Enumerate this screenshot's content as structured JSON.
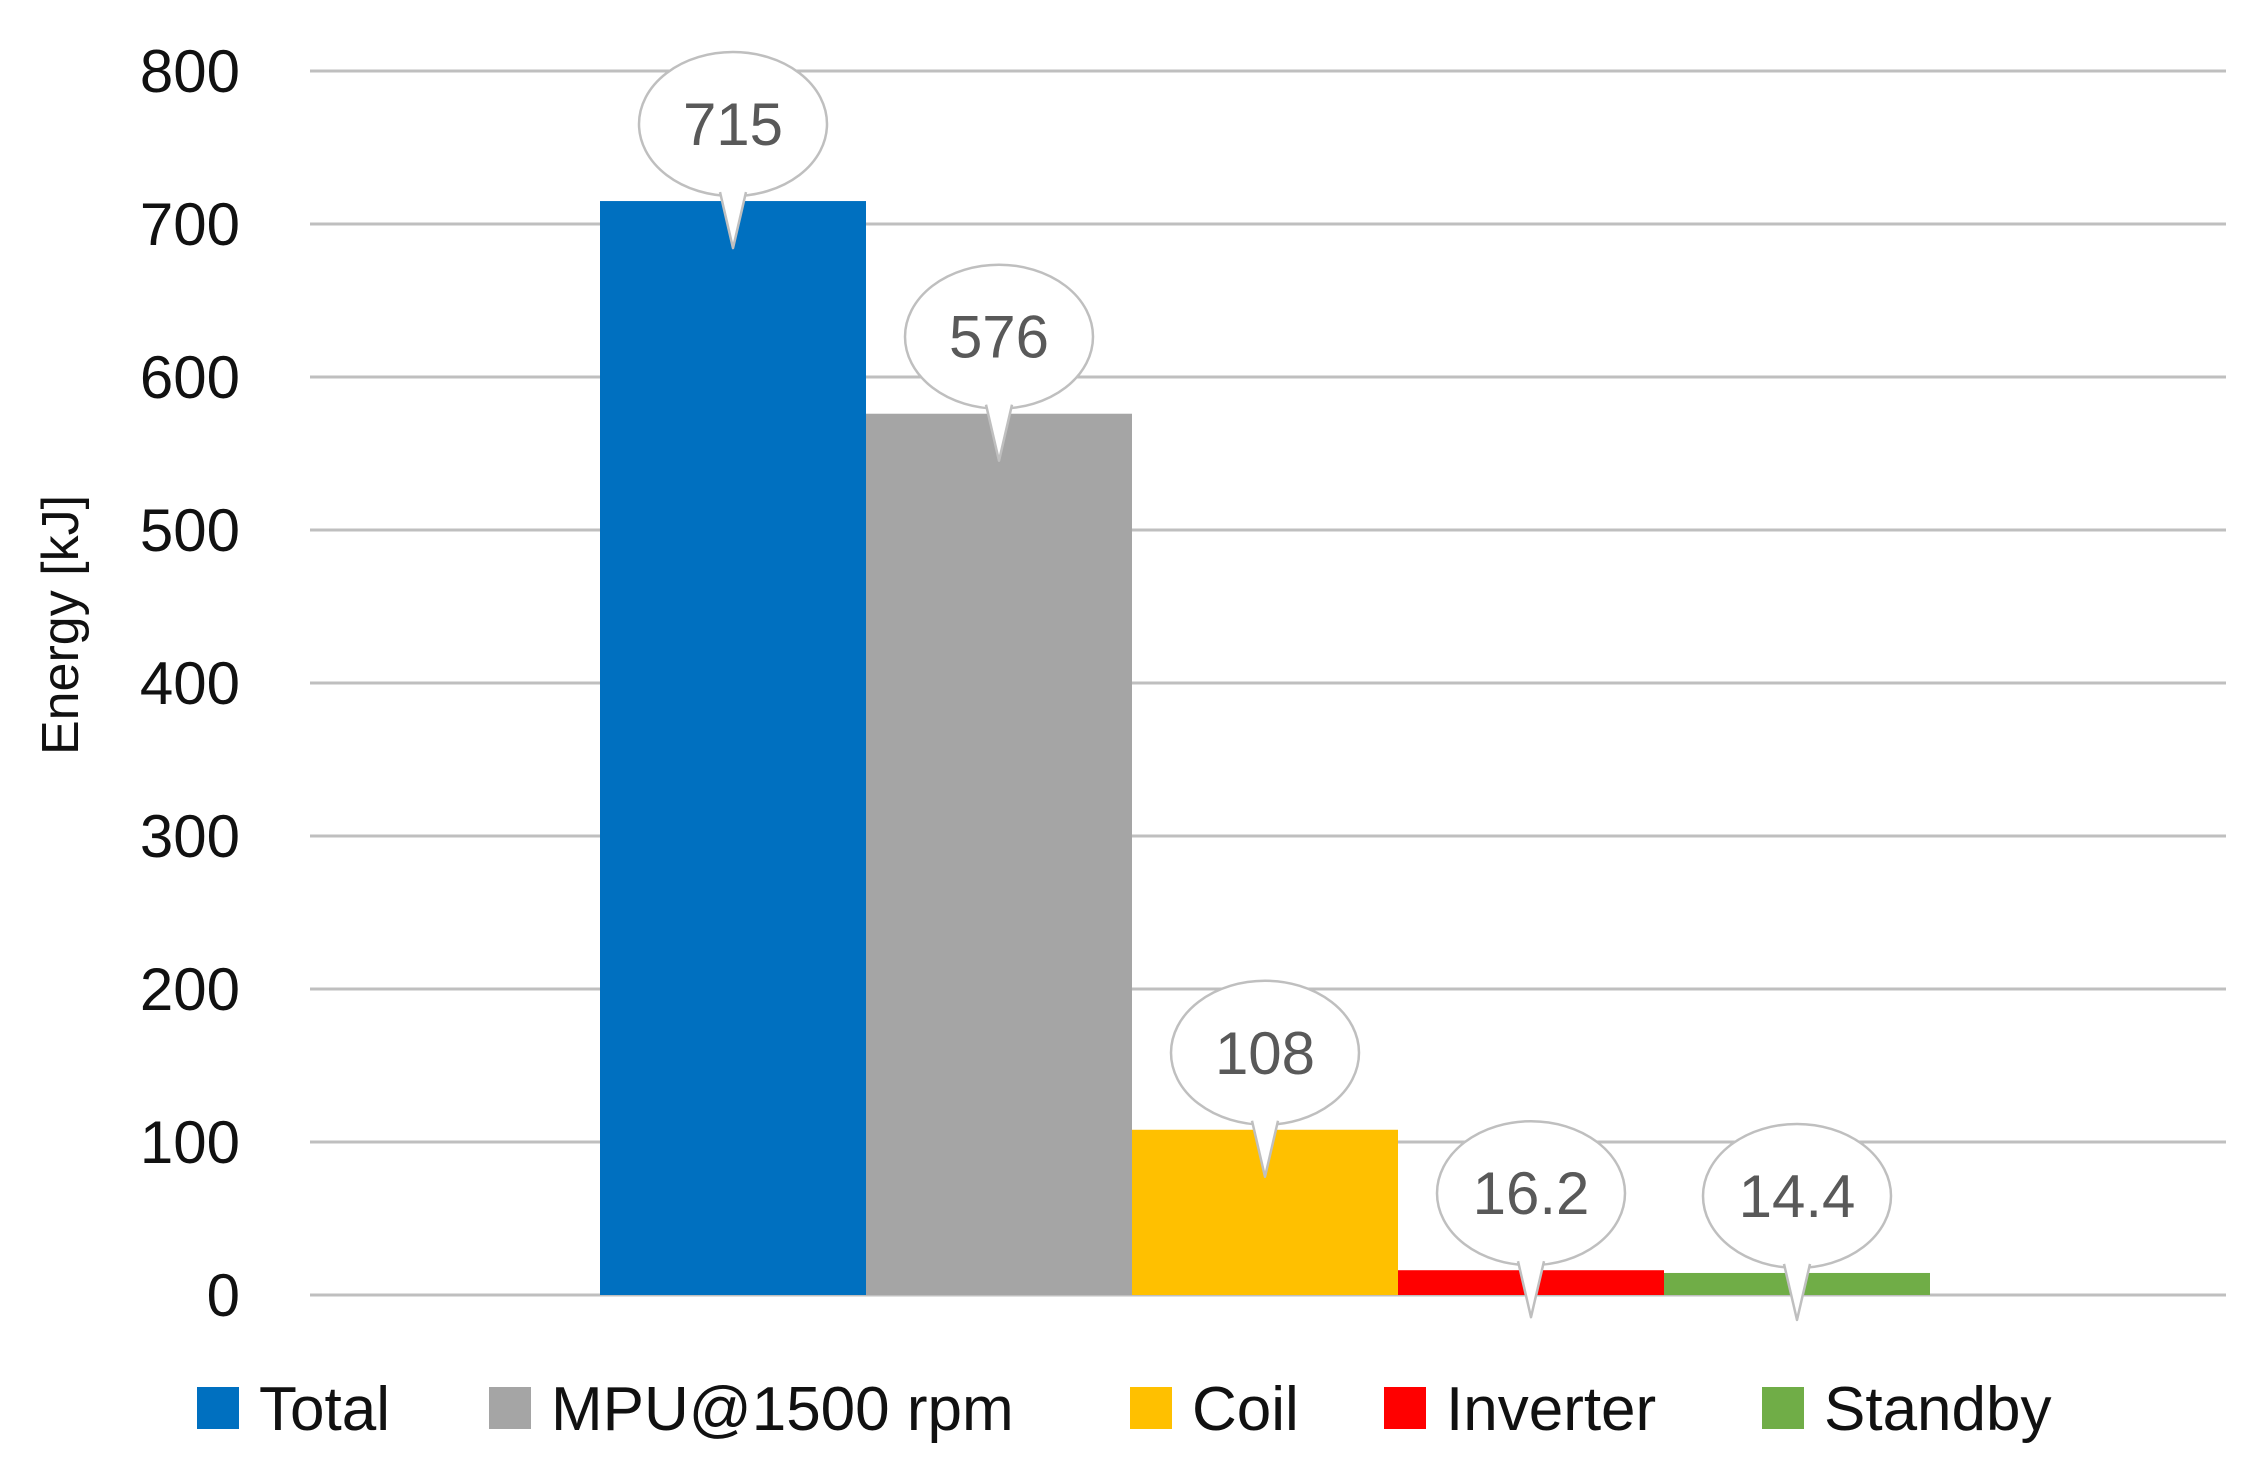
{
  "chart_data": {
    "type": "bar",
    "ylabel": "Energy [kJ]",
    "ylim": [
      0,
      800
    ],
    "yticks": [
      0,
      100,
      200,
      300,
      400,
      500,
      600,
      700,
      800
    ],
    "grid": true,
    "legend_position": "bottom",
    "series": [
      {
        "name": "Total",
        "value": 715,
        "label": "715",
        "color": "#0070c0"
      },
      {
        "name": "MPU@1500 rpm",
        "value": 576,
        "label": "576",
        "color": "#a5a5a5"
      },
      {
        "name": "Coil",
        "value": 108,
        "label": "108",
        "color": "#ffc000"
      },
      {
        "name": "Inverter",
        "value": 16.2,
        "label": "16.2",
        "color": "#ff0000"
      },
      {
        "name": "Standby",
        "value": 14.4,
        "label": "14.4",
        "color": "#70ad47"
      }
    ]
  }
}
